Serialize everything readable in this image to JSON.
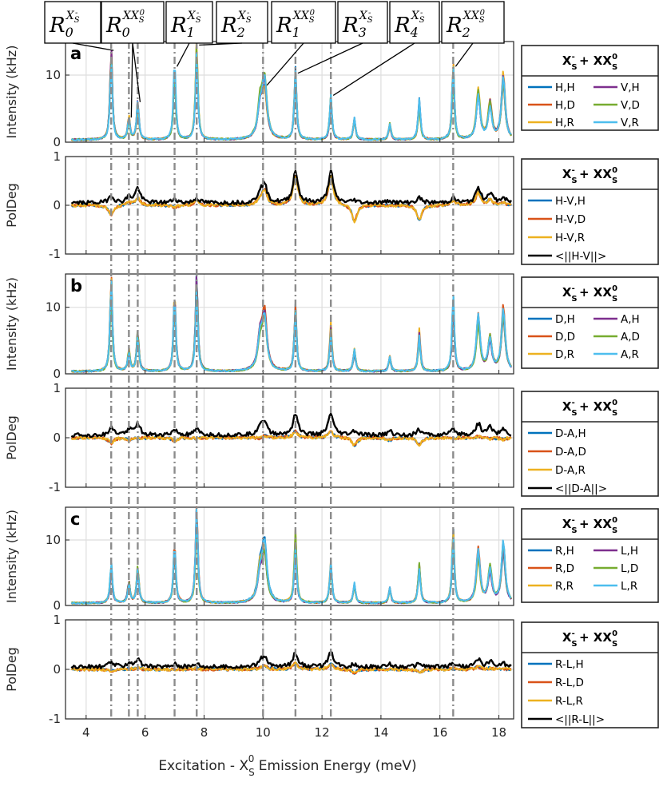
{
  "chart_data": {
    "type": "line",
    "xlabel": "Excitation - X",
    "xlabel_sub": "S",
    "xlabel_sup": "0",
    "xlabel_tail": " Emission Energy (meV)",
    "xlim": [
      3.3,
      18.5
    ],
    "xticks": [
      "4",
      "6",
      "8",
      "10",
      "12",
      "14",
      "16",
      "18"
    ],
    "vlines": [
      4.85,
      5.45,
      5.75,
      7.0,
      7.75,
      10.0,
      11.1,
      12.3,
      16.45
    ],
    "peaks": [
      {
        "x": 4.85,
        "h": 13.2,
        "pd": -0.2,
        "pdk": 0.15
      },
      {
        "x": 5.45,
        "h": 3.2,
        "pd": 0.05,
        "pdk": 0.12
      },
      {
        "x": 5.75,
        "h": 5.5,
        "pd": 0.15,
        "pdk": 0.3
      },
      {
        "x": 7.0,
        "h": 10.8,
        "pd": -0.05,
        "pdk": 0.08
      },
      {
        "x": 7.75,
        "h": 14.0,
        "pd": 0.1,
        "pdk": 0.1
      },
      {
        "x": 9.9,
        "h": 4.5,
        "pd": 0.1,
        "pdk": 0.2
      },
      {
        "x": 10.05,
        "h": 8.0,
        "pd": 0.3,
        "pdk": 0.35
      },
      {
        "x": 11.1,
        "h": 9.8,
        "pd": 0.6,
        "pdk": 0.65
      },
      {
        "x": 12.3,
        "h": 6.5,
        "pd": 0.6,
        "pdk": 0.65
      },
      {
        "x": 13.1,
        "h": 3.0,
        "pd": -0.35,
        "pdk": 0.05
      },
      {
        "x": 14.3,
        "h": 2.2,
        "pd": 0.0,
        "pdk": 0.05
      },
      {
        "x": 15.3,
        "h": 5.8,
        "pd": -0.3,
        "pdk": 0.1
      },
      {
        "x": 16.45,
        "h": 10.8,
        "pd": 0.1,
        "pdk": 0.1
      },
      {
        "x": 17.3,
        "h": 7.5,
        "pd": 0.25,
        "pdk": 0.3
      },
      {
        "x": 17.7,
        "h": 5.0,
        "pd": 0.1,
        "pdk": 0.2
      },
      {
        "x": 18.15,
        "h": 9.0,
        "pd": 0.05,
        "pdk": 0.1
      }
    ],
    "panels": [
      {
        "label": "a",
        "intensity": {
          "ylabel": "Intensity (kHz)",
          "ylim": [
            0,
            15
          ],
          "yticks": [
            "0",
            "10"
          ],
          "legend_title_main": "X",
          "legend_title_sub": "S",
          "legend_title_sup": "-",
          "legend_title_mid": " + XX",
          "legend_title_sub2": "S",
          "legend_title_sup2": "0",
          "series": [
            {
              "name": "H,H",
              "color": "#0072BD"
            },
            {
              "name": "H,D",
              "color": "#D95319"
            },
            {
              "name": "H,R",
              "color": "#EDB120"
            },
            {
              "name": "V,H",
              "color": "#7E2F8E"
            },
            {
              "name": "V,D",
              "color": "#77AC30"
            },
            {
              "name": "V,R",
              "color": "#4DBEEE"
            }
          ]
        },
        "poldeg": {
          "ylabel": "PolDeg",
          "ylim": [
            -1,
            1
          ],
          "yticks": [
            "-1",
            "0",
            "1"
          ],
          "series": [
            {
              "name": "H-V,H",
              "color": "#0072BD"
            },
            {
              "name": "H-V,D",
              "color": "#D95319"
            },
            {
              "name": "H-V,R",
              "color": "#EDB120"
            },
            {
              "name": "<||H-V||>",
              "color": "#000000"
            }
          ]
        }
      },
      {
        "label": "b",
        "intensity": {
          "ylabel": "Intensity (kHz)",
          "ylim": [
            0,
            15
          ],
          "yticks": [
            "0",
            "10"
          ],
          "series": [
            {
              "name": "D,H",
              "color": "#0072BD"
            },
            {
              "name": "D,D",
              "color": "#D95319"
            },
            {
              "name": "D,R",
              "color": "#EDB120"
            },
            {
              "name": "A,H",
              "color": "#7E2F8E"
            },
            {
              "name": "A,D",
              "color": "#77AC30"
            },
            {
              "name": "A,R",
              "color": "#4DBEEE"
            }
          ]
        },
        "poldeg": {
          "ylabel": "PolDeg",
          "ylim": [
            -1,
            1
          ],
          "yticks": [
            "-1",
            "0",
            "1"
          ],
          "series": [
            {
              "name": "D-A,H",
              "color": "#0072BD"
            },
            {
              "name": "D-A,D",
              "color": "#D95319"
            },
            {
              "name": "D-A,R",
              "color": "#EDB120"
            },
            {
              "name": "<||D-A||>",
              "color": "#000000"
            }
          ]
        }
      },
      {
        "label": "c",
        "intensity": {
          "ylabel": "Intensity (kHz)",
          "ylim": [
            0,
            15
          ],
          "yticks": [
            "0",
            "10"
          ],
          "series": [
            {
              "name": "R,H",
              "color": "#0072BD"
            },
            {
              "name": "R,D",
              "color": "#D95319"
            },
            {
              "name": "R,R",
              "color": "#EDB120"
            },
            {
              "name": "L,H",
              "color": "#7E2F8E"
            },
            {
              "name": "L,D",
              "color": "#77AC30"
            },
            {
              "name": "L,R",
              "color": "#4DBEEE"
            }
          ]
        },
        "poldeg": {
          "ylabel": "PolDeg",
          "ylim": [
            -1,
            1
          ],
          "yticks": [
            "-1",
            "0",
            "1"
          ],
          "series": [
            {
              "name": "R-L,H",
              "color": "#0072BD"
            },
            {
              "name": "R-L,D",
              "color": "#D95319"
            },
            {
              "name": "R-L,R",
              "color": "#EDB120"
            },
            {
              "name": "<||R-L||>",
              "color": "#000000"
            }
          ]
        }
      }
    ],
    "annotations": [
      {
        "base": "R",
        "sub": "0",
        "sup": "X",
        "supsub": "S",
        "supsup": "-",
        "target_x": [
          4.85
        ]
      },
      {
        "base": "R",
        "sub": "0",
        "sup": "XX",
        "supsub": "S",
        "supsup": "0",
        "target_x": [
          5.45,
          5.75
        ]
      },
      {
        "base": "R",
        "sub": "1",
        "sup": "X",
        "supsub": "S",
        "supsup": "-",
        "target_x": [
          7.0
        ]
      },
      {
        "base": "R",
        "sub": "2",
        "sup": "X",
        "supsub": "S",
        "supsup": "-",
        "target_x": [
          7.75
        ]
      },
      {
        "base": "R",
        "sub": "1",
        "sup": "XX",
        "supsub": "S",
        "supsup": "0",
        "target_x": [
          10.05
        ]
      },
      {
        "base": "R",
        "sub": "3",
        "sup": "X",
        "supsub": "S",
        "supsup": "-",
        "target_x": [
          11.1
        ]
      },
      {
        "base": "R",
        "sub": "4",
        "sup": "X",
        "supsub": "S",
        "supsup": "-",
        "target_x": [
          12.3
        ]
      },
      {
        "base": "R",
        "sub": "2",
        "sup": "XX",
        "supsub": "S",
        "supsup": "0",
        "target_x": [
          16.45
        ]
      }
    ]
  }
}
